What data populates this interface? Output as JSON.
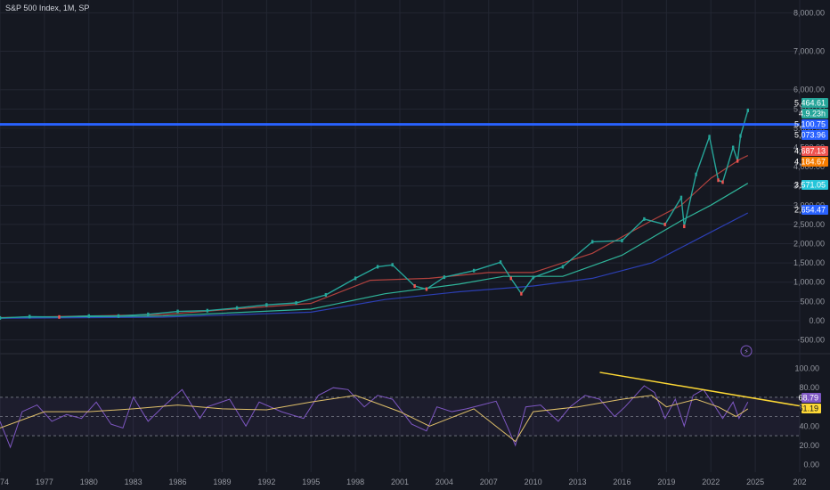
{
  "header": {
    "title": "S&P 500 Index, 1M, SP"
  },
  "colors": {
    "background": "#151821",
    "grid": "#232632",
    "up": "#26a69a",
    "down": "#ef5350",
    "ma_red": "#b2423e",
    "ma_teal": "#2fb59a",
    "ma_blue": "#2c3fb4",
    "hline": "#2962ff",
    "rsi": "#7e57c2",
    "rsi_ma": "#e0c06a",
    "trendline": "#fdd835"
  },
  "chart_data": [
    {
      "type": "line",
      "title": "S&P 500 Index, 1M, SP",
      "x_ticks": [
        "1974",
        "1977",
        "1980",
        "1983",
        "1986",
        "1989",
        "1992",
        "1995",
        "1998",
        "2001",
        "2004",
        "2007",
        "2010",
        "2013",
        "2016",
        "2019",
        "2022",
        "2025",
        "202"
      ],
      "y_ticks": [
        "8,000.00",
        "7,000.00",
        "6,000.00",
        "5,500.00",
        "5,000.00",
        "4,500.00",
        "4,000.00",
        "3,500.00",
        "3,000.00",
        "2,500.00",
        "2,000.00",
        "1,500.00",
        "1,000.00",
        "500.00",
        "0.00",
        "-500.00"
      ],
      "y_tick_values": [
        8000,
        7000,
        6000,
        5500,
        5000,
        4500,
        4000,
        3500,
        3000,
        2500,
        2000,
        1500,
        1000,
        500,
        0,
        -500
      ],
      "price_series": {
        "name": "S&P 500",
        "x": [
          1974,
          1976,
          1978,
          1980,
          1982,
          1984,
          1986,
          1988,
          1990,
          1992,
          1994,
          1996,
          1998,
          1999.5,
          2000.5,
          2002,
          2002.8,
          2004,
          2006,
          2007.8,
          2008.5,
          2009.2,
          2010,
          2012,
          2014,
          2016,
          2017.5,
          2018.9,
          2020,
          2020.2,
          2021,
          2021.9,
          2022.5,
          2022.8,
          2023.5,
          2023.8,
          2024,
          2024.5
        ],
        "y": [
          70,
          105,
          95,
          120,
          120,
          165,
          240,
          260,
          330,
          410,
          460,
          670,
          1100,
          1400,
          1450,
          900,
          820,
          1130,
          1300,
          1520,
          1100,
          700,
          1120,
          1400,
          2050,
          2080,
          2640,
          2500,
          3200,
          2450,
          3800,
          4780,
          3650,
          3600,
          4500,
          4150,
          4800,
          5464
        ]
      },
      "moving_averages": [
        {
          "x": [
            1974,
            1985,
            1995,
            1999,
            2003,
            2007,
            2010,
            2014,
            2018,
            2020,
            2022,
            2024,
            2024.5
          ],
          "y": [
            80,
            160,
            450,
            1050,
            1100,
            1250,
            1250,
            1750,
            2600,
            3000,
            3700,
            4200,
            4290
          ]
        },
        {
          "x": [
            1974,
            1985,
            1995,
            2000,
            2005,
            2008,
            2012,
            2016,
            2020,
            2022,
            2024.5
          ],
          "y": [
            70,
            120,
            300,
            700,
            950,
            1150,
            1150,
            1700,
            2600,
            3000,
            3571
          ]
        },
        {
          "x": [
            1974,
            1985,
            1995,
            2000,
            2005,
            2010,
            2014,
            2018,
            2021,
            2024.5
          ],
          "y": [
            60,
            90,
            220,
            550,
            750,
            900,
            1100,
            1500,
            2100,
            2800
          ]
        }
      ],
      "horizontal_level": 5100.75,
      "price_labels": [
        {
          "text": "5,464.61",
          "color": "#26a69a"
        },
        {
          "text": "4.9.23h",
          "color": "#26a69a"
        },
        {
          "text": "5,100.75",
          "color": "#2962ff"
        },
        {
          "text": "5,073.96",
          "color": "#2962ff"
        },
        {
          "text": "4,687.13",
          "color": "#ef5350"
        },
        {
          "text": "4,184.67",
          "color": "#f57c00"
        },
        {
          "text": "3,571.05",
          "color": "#26c6da"
        },
        {
          "text": "2,654.47",
          "color": "#2962ff"
        }
      ],
      "x_range": [
        1974,
        2028
      ],
      "y_range": [
        -650,
        8100
      ],
      "grid": true
    },
    {
      "type": "line",
      "title": "",
      "y_ticks": [
        "100.00",
        "80.00",
        "60.00",
        "40.00",
        "20.00",
        "0.00"
      ],
      "y_tick_values": [
        100,
        80,
        60,
        40,
        20,
        0
      ],
      "bands": [
        70,
        50,
        30
      ],
      "rsi_series": {
        "name": "",
        "x": [
          1974,
          1974.7,
          1975.5,
          1976.5,
          1977.5,
          1978.5,
          1979.5,
          1980.5,
          1981.5,
          1982.3,
          1983,
          1984,
          1985,
          1986.3,
          1987.5,
          1988,
          1989.5,
          1990.6,
          1991.5,
          1993,
          1994.5,
          1995.5,
          1996.5,
          1997.5,
          1998.6,
          1999.5,
          2000.5,
          2001.8,
          2002.8,
          2003.5,
          2004.5,
          2005.5,
          2006.5,
          2007.5,
          2008.3,
          2008.8,
          2009.5,
          2010.5,
          2011.7,
          2012.5,
          2013.5,
          2014.5,
          2015.5,
          2016.2,
          2017.5,
          2018.2,
          2018.9,
          2019.6,
          2020.2,
          2020.8,
          2021.5,
          2022.3,
          2022.8,
          2023.5,
          2023.9,
          2024.5
        ],
        "y": [
          45,
          18,
          55,
          62,
          45,
          52,
          48,
          65,
          42,
          38,
          70,
          45,
          60,
          78,
          48,
          60,
          68,
          40,
          65,
          55,
          48,
          72,
          80,
          78,
          60,
          72,
          68,
          42,
          35,
          60,
          55,
          58,
          62,
          66,
          38,
          20,
          60,
          62,
          45,
          60,
          72,
          68,
          50,
          60,
          82,
          75,
          48,
          68,
          40,
          72,
          78,
          60,
          48,
          65,
          48,
          65
        ]
      },
      "rsi_ma": {
        "x": [
          1974,
          1977,
          1980,
          1983,
          1986,
          1989,
          1992,
          1995,
          1998,
          2001,
          2003,
          2006,
          2008.8,
          2010,
          2013,
          2016,
          2018,
          2019,
          2021,
          2022.5,
          2023.7,
          2024.5
        ],
        "y": [
          38,
          55,
          55,
          58,
          62,
          58,
          57,
          65,
          72,
          55,
          40,
          58,
          24,
          55,
          60,
          68,
          72,
          60,
          68,
          60,
          50,
          58
        ]
      },
      "trendline": {
        "x": [
          2014.5,
          2028
        ],
        "y": [
          96,
          61
        ]
      },
      "value_labels": [
        {
          "text": "68.79",
          "color": "#7e57c2"
        },
        {
          "text": "61.19",
          "color": "#fdd835"
        }
      ],
      "x_range": [
        1974,
        2028
      ],
      "y_range": [
        -8,
        108
      ],
      "grid": true
    }
  ]
}
